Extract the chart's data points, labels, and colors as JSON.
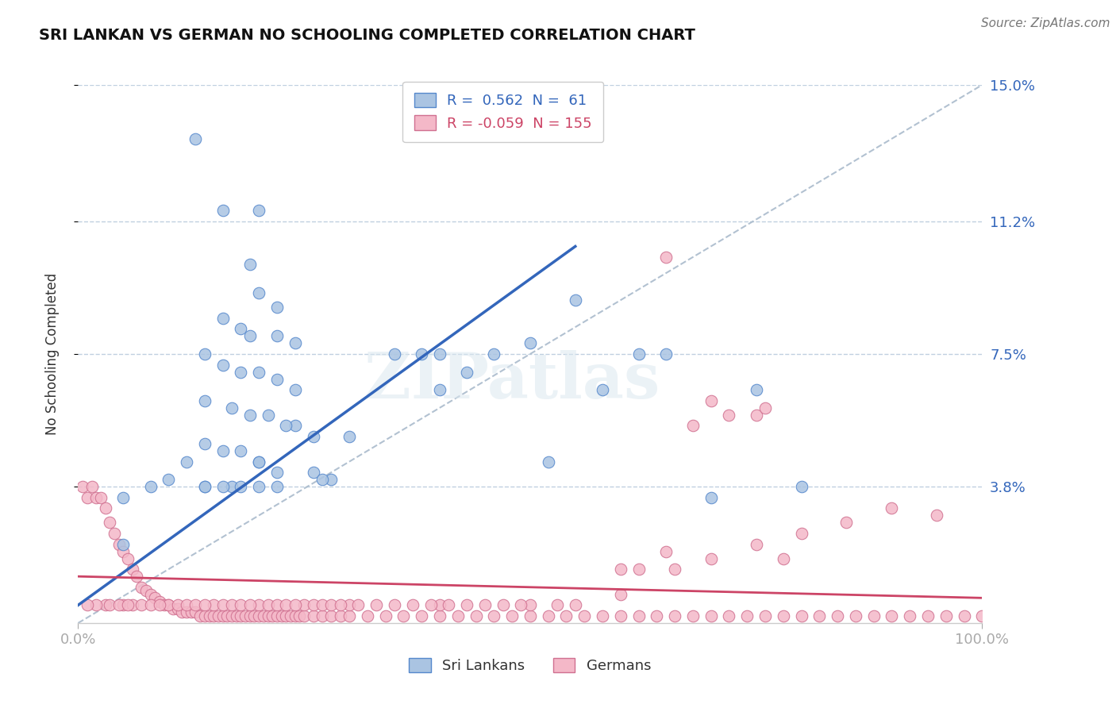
{
  "title": "SRI LANKAN VS GERMAN NO SCHOOLING COMPLETED CORRELATION CHART",
  "source": "Source: ZipAtlas.com",
  "ylabel": "No Schooling Completed",
  "xlim": [
    0,
    100
  ],
  "ylim": [
    0,
    15
  ],
  "ytick_vals": [
    3.8,
    7.5,
    11.2,
    15.0
  ],
  "ytick_labels": [
    "3.8%",
    "7.5%",
    "11.2%",
    "15.0%"
  ],
  "xtick_vals": [
    0,
    100
  ],
  "xtick_labels": [
    "0.0%",
    "100.0%"
  ],
  "blue_R": "0.562",
  "blue_N": "61",
  "pink_R": "-0.059",
  "pink_N": "155",
  "blue_color": "#aac4e2",
  "blue_edge_color": "#5588cc",
  "blue_line_color": "#3366bb",
  "pink_color": "#f4b8c8",
  "pink_edge_color": "#d07090",
  "pink_line_color": "#cc4466",
  "diagonal_color": "#aabbcc",
  "background_color": "#ffffff",
  "grid_color": "#c0d0e0",
  "watermark": "ZIPatlas",
  "blue_line_x0": 0,
  "blue_line_y0": 0.5,
  "blue_line_x1": 55,
  "blue_line_y1": 10.5,
  "pink_line_x0": 0,
  "pink_line_y0": 1.3,
  "pink_line_x1": 100,
  "pink_line_y1": 0.7,
  "diag_x0": 0,
  "diag_y0": 0,
  "diag_x1": 100,
  "diag_y1": 15,
  "blue_scatter_x": [
    13,
    16,
    20,
    5,
    19,
    20,
    22,
    16,
    18,
    19,
    22,
    24,
    14,
    16,
    18,
    20,
    22,
    24,
    14,
    17,
    19,
    21,
    24,
    26,
    14,
    16,
    18,
    20,
    22,
    26,
    28,
    14,
    17,
    20,
    23,
    27,
    30,
    35,
    38,
    40,
    40,
    43,
    46,
    50,
    52,
    55,
    58,
    62,
    65,
    70,
    75,
    80,
    5,
    8,
    10,
    12,
    14,
    16,
    18,
    20,
    22
  ],
  "blue_scatter_y": [
    13.5,
    11.5,
    11.5,
    2.2,
    10.0,
    9.2,
    8.8,
    8.5,
    8.2,
    8.0,
    8.0,
    7.8,
    7.5,
    7.2,
    7.0,
    7.0,
    6.8,
    6.5,
    6.2,
    6.0,
    5.8,
    5.8,
    5.5,
    5.2,
    5.0,
    4.8,
    4.8,
    4.5,
    4.2,
    4.2,
    4.0,
    3.8,
    3.8,
    4.5,
    5.5,
    4.0,
    5.2,
    7.5,
    7.5,
    7.5,
    6.5,
    7.0,
    7.5,
    7.8,
    4.5,
    9.0,
    6.5,
    7.5,
    7.5,
    3.5,
    6.5,
    3.8,
    3.5,
    3.8,
    4.0,
    4.5,
    3.8,
    3.8,
    3.8,
    3.8,
    3.8
  ],
  "pink_scatter_x": [
    0.5,
    1.0,
    1.5,
    2.0,
    2.5,
    3.0,
    3.5,
    4.0,
    4.5,
    5.0,
    5.5,
    6.0,
    6.5,
    7.0,
    7.5,
    8.0,
    8.5,
    9.0,
    9.5,
    10.0,
    10.5,
    11.0,
    11.5,
    12.0,
    12.5,
    13.0,
    13.5,
    14.0,
    14.5,
    15.0,
    15.5,
    16.0,
    16.5,
    17.0,
    17.5,
    18.0,
    18.5,
    19.0,
    19.5,
    20.0,
    20.5,
    21.0,
    21.5,
    22.0,
    22.5,
    23.0,
    23.5,
    24.0,
    24.5,
    25.0,
    26.0,
    27.0,
    28.0,
    29.0,
    30.0,
    32.0,
    34.0,
    36.0,
    38.0,
    40.0,
    42.0,
    44.0,
    46.0,
    48.0,
    50.0,
    52.0,
    54.0,
    56.0,
    58.0,
    60.0,
    62.0,
    64.0,
    66.0,
    68.0,
    70.0,
    72.0,
    74.0,
    76.0,
    78.0,
    80.0,
    82.0,
    84.0,
    86.0,
    88.0,
    90.0,
    92.0,
    94.0,
    96.0,
    98.0,
    100.0,
    60.0,
    65.0,
    70.0,
    75.0,
    80.0,
    65.0,
    75.0,
    70.0,
    68.0,
    72.0,
    76.0,
    66.0,
    78.0,
    62.0,
    85.0,
    90.0,
    95.0,
    50.0,
    55.0,
    60.0,
    40.0,
    45.0,
    35.0,
    30.0,
    25.0,
    20.0,
    15.0,
    10.0,
    5.0,
    3.0,
    2.0,
    1.0,
    6.0,
    7.0,
    8.0,
    9.0,
    3.5,
    4.5,
    5.5,
    11.0,
    12.0,
    13.0,
    14.0,
    16.0,
    17.0,
    18.0,
    19.0,
    21.0,
    22.0,
    23.0,
    24.0,
    26.0,
    27.0,
    28.0,
    29.0,
    31.0,
    33.0,
    37.0,
    39.0,
    41.0,
    43.0,
    47.0,
    49.0,
    53.0
  ],
  "pink_scatter_y": [
    3.8,
    3.5,
    3.8,
    3.5,
    3.5,
    3.2,
    2.8,
    2.5,
    2.2,
    2.0,
    1.8,
    1.5,
    1.3,
    1.0,
    0.9,
    0.8,
    0.7,
    0.6,
    0.5,
    0.5,
    0.4,
    0.4,
    0.3,
    0.3,
    0.3,
    0.3,
    0.2,
    0.2,
    0.2,
    0.2,
    0.2,
    0.2,
    0.2,
    0.2,
    0.2,
    0.2,
    0.2,
    0.2,
    0.2,
    0.2,
    0.2,
    0.2,
    0.2,
    0.2,
    0.2,
    0.2,
    0.2,
    0.2,
    0.2,
    0.2,
    0.2,
    0.2,
    0.2,
    0.2,
    0.2,
    0.2,
    0.2,
    0.2,
    0.2,
    0.2,
    0.2,
    0.2,
    0.2,
    0.2,
    0.2,
    0.2,
    0.2,
    0.2,
    0.2,
    0.2,
    0.2,
    0.2,
    0.2,
    0.2,
    0.2,
    0.2,
    0.2,
    0.2,
    0.2,
    0.2,
    0.2,
    0.2,
    0.2,
    0.2,
    0.2,
    0.2,
    0.2,
    0.2,
    0.2,
    0.2,
    1.5,
    2.0,
    1.8,
    2.2,
    2.5,
    10.2,
    5.8,
    6.2,
    5.5,
    5.8,
    6.0,
    1.5,
    1.8,
    1.5,
    2.8,
    3.2,
    3.0,
    0.5,
    0.5,
    0.8,
    0.5,
    0.5,
    0.5,
    0.5,
    0.5,
    0.5,
    0.5,
    0.5,
    0.5,
    0.5,
    0.5,
    0.5,
    0.5,
    0.5,
    0.5,
    0.5,
    0.5,
    0.5,
    0.5,
    0.5,
    0.5,
    0.5,
    0.5,
    0.5,
    0.5,
    0.5,
    0.5,
    0.5,
    0.5,
    0.5,
    0.5,
    0.5,
    0.5,
    0.5,
    0.5,
    0.5,
    0.5,
    0.5,
    0.5,
    0.5,
    0.5,
    0.5,
    0.5,
    0.5
  ]
}
